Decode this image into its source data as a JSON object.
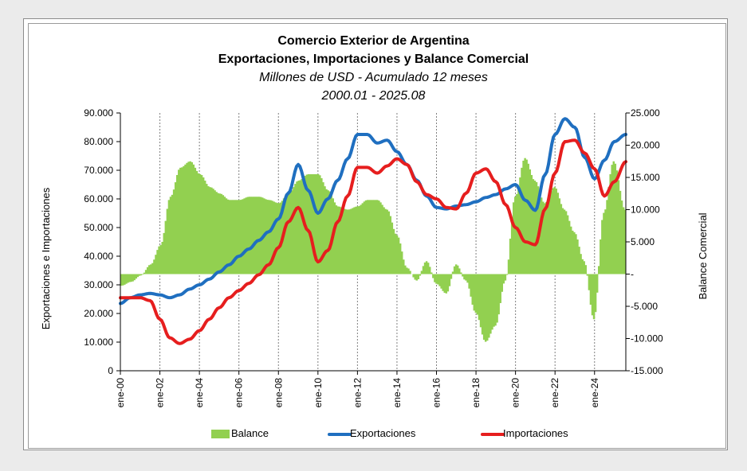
{
  "title": {
    "line1": "Comercio Exterior de Argentina",
    "line2": "Exportaciones, Importaciones y Balance Comercial",
    "line3": "Millones de USD  - Acumulado 12 meses",
    "line4": "2000.01 - 2025.08"
  },
  "colors": {
    "balance": "#92d050",
    "exportaciones": "#1f6fc0",
    "importaciones": "#e61e1e",
    "gridline": "#7f7f7f"
  },
  "chart_data": {
    "type": "line",
    "period": "2000.01 - 2025.08",
    "x": [
      "ene-00",
      "ene-02",
      "ene-04",
      "ene-06",
      "ene-08",
      "ene-10",
      "ene-12",
      "ene-14",
      "ene-16",
      "ene-18",
      "ene-20",
      "ene-22",
      "ene-24"
    ],
    "x_tick_labels": [
      "ene-00",
      "ene-02",
      "ene-04",
      "ene-06",
      "ene-08",
      "ene-10",
      "ene-12",
      "ene-14",
      "ene-16",
      "ene-18",
      "ene-20",
      "ene-22",
      "ene-24"
    ],
    "x_range": [
      "ene-00",
      "ago-25"
    ],
    "grid": "vertical gridlines at x ticks",
    "legend_position": "bottom",
    "y_left": {
      "label": "Exportaciones e Importaciones",
      "ylim": [
        0,
        90000
      ],
      "ticks": [
        "0",
        "10.000",
        "20.000",
        "30.000",
        "40.000",
        "50.000",
        "60.000",
        "70.000",
        "80.000",
        "90.000"
      ]
    },
    "y_right": {
      "label": "Balance Comercial",
      "ylim": [
        -15000,
        25000
      ],
      "ticks": [
        "-15.000",
        "-10.000",
        "-5.000",
        "-",
        "5.000",
        "10.000",
        "15.000",
        "20.000",
        "25.000"
      ]
    },
    "series": [
      {
        "name": "Balance",
        "type": "bar",
        "axis": "right",
        "points": [
          [
            "2000.01",
            -1800
          ],
          [
            "2000.07",
            -1200
          ],
          [
            "2001.01",
            -200
          ],
          [
            "2001.07",
            1500
          ],
          [
            "2002.01",
            4500
          ],
          [
            "2002.07",
            12000
          ],
          [
            "2003.01",
            16500
          ],
          [
            "2003.07",
            17500
          ],
          [
            "2004.01",
            15500
          ],
          [
            "2004.07",
            13500
          ],
          [
            "2005.01",
            12500
          ],
          [
            "2005.07",
            11500
          ],
          [
            "2006.01",
            11500
          ],
          [
            "2006.07",
            12000
          ],
          [
            "2007.01",
            12000
          ],
          [
            "2007.07",
            11500
          ],
          [
            "2008.01",
            11000
          ],
          [
            "2008.07",
            12500
          ],
          [
            "2009.01",
            14500
          ],
          [
            "2009.07",
            15500
          ],
          [
            "2010.01",
            15500
          ],
          [
            "2010.07",
            13000
          ],
          [
            "2011.01",
            10500
          ],
          [
            "2011.07",
            10000
          ],
          [
            "2012.01",
            10500
          ],
          [
            "2012.07",
            11500
          ],
          [
            "2013.01",
            11500
          ],
          [
            "2013.07",
            10000
          ],
          [
            "2014.01",
            6000
          ],
          [
            "2014.07",
            1000
          ],
          [
            "2015.01",
            -1000
          ],
          [
            "2015.07",
            2000
          ],
          [
            "2016.01",
            -1500
          ],
          [
            "2016.07",
            -3000
          ],
          [
            "2017.01",
            1500
          ],
          [
            "2017.07",
            -1000
          ],
          [
            "2018.01",
            -6000
          ],
          [
            "2018.07",
            -10500
          ],
          [
            "2019.01",
            -8000
          ],
          [
            "2019.07",
            -1000
          ],
          [
            "2020.01",
            12000
          ],
          [
            "2020.07",
            18000
          ],
          [
            "2021.01",
            14500
          ],
          [
            "2021.07",
            11000
          ],
          [
            "2022.01",
            13500
          ],
          [
            "2022.07",
            10000
          ],
          [
            "2023.01",
            6500
          ],
          [
            "2023.07",
            2000
          ],
          [
            "2024.01",
            -7000
          ],
          [
            "2024.07",
            9500
          ],
          [
            "2025.01",
            17500
          ],
          [
            "2025.08",
            10000
          ]
        ]
      },
      {
        "name": "Exportaciones",
        "type": "line",
        "axis": "left",
        "points": [
          [
            "2000.01",
            23500
          ],
          [
            "2000.07",
            25500
          ],
          [
            "2001.01",
            26500
          ],
          [
            "2001.07",
            27000
          ],
          [
            "2002.01",
            26500
          ],
          [
            "2002.07",
            25500
          ],
          [
            "2003.01",
            26500
          ],
          [
            "2003.07",
            28500
          ],
          [
            "2004.01",
            30000
          ],
          [
            "2004.07",
            32000
          ],
          [
            "2005.01",
            34500
          ],
          [
            "2005.07",
            37000
          ],
          [
            "2006.01",
            40000
          ],
          [
            "2006.07",
            42500
          ],
          [
            "2007.01",
            45500
          ],
          [
            "2007.07",
            48500
          ],
          [
            "2008.01",
            53000
          ],
          [
            "2008.07",
            62000
          ],
          [
            "2009.01",
            72000
          ],
          [
            "2009.07",
            63000
          ],
          [
            "2010.01",
            55000
          ],
          [
            "2010.07",
            60000
          ],
          [
            "2011.01",
            66500
          ],
          [
            "2011.07",
            74000
          ],
          [
            "2012.01",
            82500
          ],
          [
            "2012.07",
            82500
          ],
          [
            "2013.01",
            79500
          ],
          [
            "2013.07",
            80500
          ],
          [
            "2014.01",
            76500
          ],
          [
            "2014.07",
            72000
          ],
          [
            "2015.01",
            66500
          ],
          [
            "2015.07",
            61000
          ],
          [
            "2016.01",
            57000
          ],
          [
            "2016.07",
            56500
          ],
          [
            "2017.01",
            57500
          ],
          [
            "2017.07",
            58000
          ],
          [
            "2018.01",
            59000
          ],
          [
            "2018.07",
            60500
          ],
          [
            "2019.01",
            61500
          ],
          [
            "2019.07",
            63500
          ],
          [
            "2020.01",
            65000
          ],
          [
            "2020.07",
            59500
          ],
          [
            "2021.01",
            56000
          ],
          [
            "2021.07",
            68500
          ],
          [
            "2022.01",
            82500
          ],
          [
            "2022.07",
            88000
          ],
          [
            "2023.01",
            85000
          ],
          [
            "2023.07",
            74500
          ],
          [
            "2024.01",
            67000
          ],
          [
            "2024.07",
            73500
          ],
          [
            "2025.01",
            80000
          ],
          [
            "2025.08",
            82500
          ]
        ]
      },
      {
        "name": "Importaciones",
        "type": "line",
        "axis": "left",
        "points": [
          [
            "2000.01",
            25500
          ],
          [
            "2000.07",
            25500
          ],
          [
            "2001.01",
            25500
          ],
          [
            "2001.07",
            24500
          ],
          [
            "2002.01",
            18000
          ],
          [
            "2002.07",
            11500
          ],
          [
            "2003.01",
            9500
          ],
          [
            "2003.07",
            11000
          ],
          [
            "2004.01",
            14000
          ],
          [
            "2004.07",
            18000
          ],
          [
            "2005.01",
            22000
          ],
          [
            "2005.07",
            25500
          ],
          [
            "2006.01",
            28000
          ],
          [
            "2006.07",
            30500
          ],
          [
            "2007.01",
            33500
          ],
          [
            "2007.07",
            37000
          ],
          [
            "2008.01",
            43000
          ],
          [
            "2008.07",
            52000
          ],
          [
            "2009.01",
            57000
          ],
          [
            "2009.07",
            49000
          ],
          [
            "2010.01",
            38000
          ],
          [
            "2010.07",
            42000
          ],
          [
            "2011.01",
            52000
          ],
          [
            "2011.07",
            61000
          ],
          [
            "2012.01",
            71000
          ],
          [
            "2012.07",
            71000
          ],
          [
            "2013.01",
            69000
          ],
          [
            "2013.07",
            71500
          ],
          [
            "2014.01",
            74000
          ],
          [
            "2014.07",
            72000
          ],
          [
            "2015.01",
            66000
          ],
          [
            "2015.07",
            61500
          ],
          [
            "2016.01",
            60000
          ],
          [
            "2016.07",
            57000
          ],
          [
            "2017.01",
            56500
          ],
          [
            "2017.07",
            62000
          ],
          [
            "2018.01",
            69000
          ],
          [
            "2018.07",
            70500
          ],
          [
            "2019.01",
            66000
          ],
          [
            "2019.07",
            58000
          ],
          [
            "2020.01",
            50000
          ],
          [
            "2020.07",
            45000
          ],
          [
            "2021.01",
            44000
          ],
          [
            "2021.07",
            56500
          ],
          [
            "2022.01",
            69000
          ],
          [
            "2022.07",
            80000
          ],
          [
            "2023.01",
            80500
          ],
          [
            "2023.07",
            76000
          ],
          [
            "2024.01",
            70500
          ],
          [
            "2024.07",
            61000
          ],
          [
            "2025.01",
            66000
          ],
          [
            "2025.08",
            73000
          ]
        ]
      }
    ]
  },
  "legend": {
    "balance_label": "Balance",
    "exportaciones_label": "Exportaciones",
    "importaciones_label": "Importaciones"
  }
}
